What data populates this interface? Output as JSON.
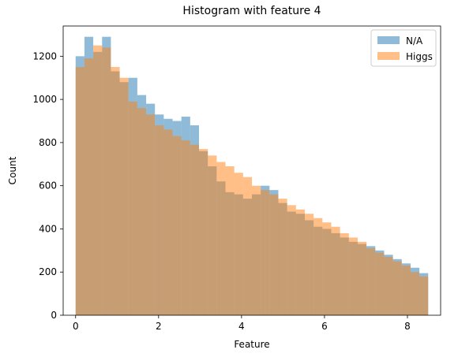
{
  "chart_data": {
    "type": "bar",
    "title": "Histogram with feature 4",
    "xlabel": "Feature",
    "ylabel": "Count",
    "xlim": [
      -0.3,
      8.8
    ],
    "ylim": [
      0,
      1340
    ],
    "xticks": [
      0,
      2,
      4,
      6,
      8
    ],
    "yticks": [
      0,
      200,
      400,
      600,
      800,
      1000,
      1200
    ],
    "legend_position": "top-right",
    "series": [
      {
        "name": "N/A",
        "color": "#1f77b4",
        "opacity": 0.5,
        "bin_start": 0.0,
        "bin_width": 0.2125,
        "values": [
          1200,
          1290,
          1220,
          1290,
          1130,
          1080,
          1100,
          1020,
          980,
          930,
          910,
          900,
          920,
          880,
          760,
          690,
          620,
          570,
          560,
          540,
          560,
          600,
          580,
          520,
          480,
          470,
          440,
          410,
          400,
          380,
          360,
          340,
          330,
          320,
          300,
          280,
          260,
          240,
          220,
          195
        ]
      },
      {
        "name": "Higgs",
        "color": "#ff7f0e",
        "opacity": 0.5,
        "bin_start": 0.0,
        "bin_width": 0.2125,
        "values": [
          1150,
          1190,
          1250,
          1240,
          1150,
          1100,
          990,
          960,
          930,
          880,
          860,
          830,
          810,
          790,
          770,
          740,
          710,
          690,
          660,
          640,
          600,
          580,
          560,
          540,
          510,
          490,
          470,
          450,
          430,
          410,
          380,
          360,
          340,
          310,
          290,
          270,
          250,
          230,
          200,
          180
        ]
      }
    ]
  }
}
